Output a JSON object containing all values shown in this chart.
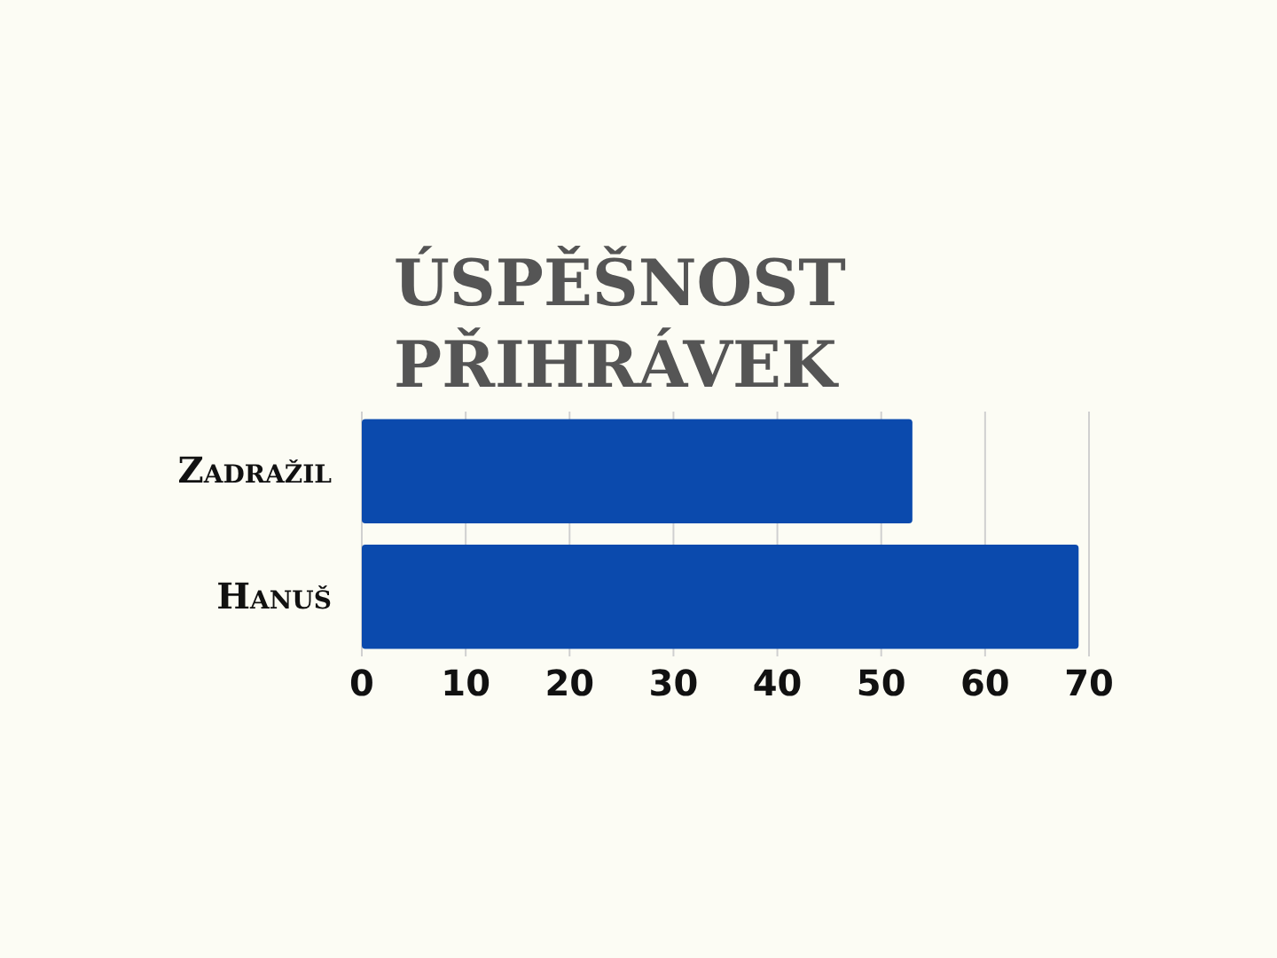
{
  "chart_data": {
    "type": "bar",
    "orientation": "horizontal",
    "title": "ÚSPĚŠNOST PŘIHRÁVEK",
    "categories": [
      "Zadražil",
      "Hanuš"
    ],
    "values": [
      53,
      69
    ],
    "color": "#0b4aad",
    "xlim": [
      0,
      70
    ],
    "xticks": [
      0,
      10,
      20,
      30,
      40,
      50,
      60,
      70
    ],
    "grid": "x"
  }
}
